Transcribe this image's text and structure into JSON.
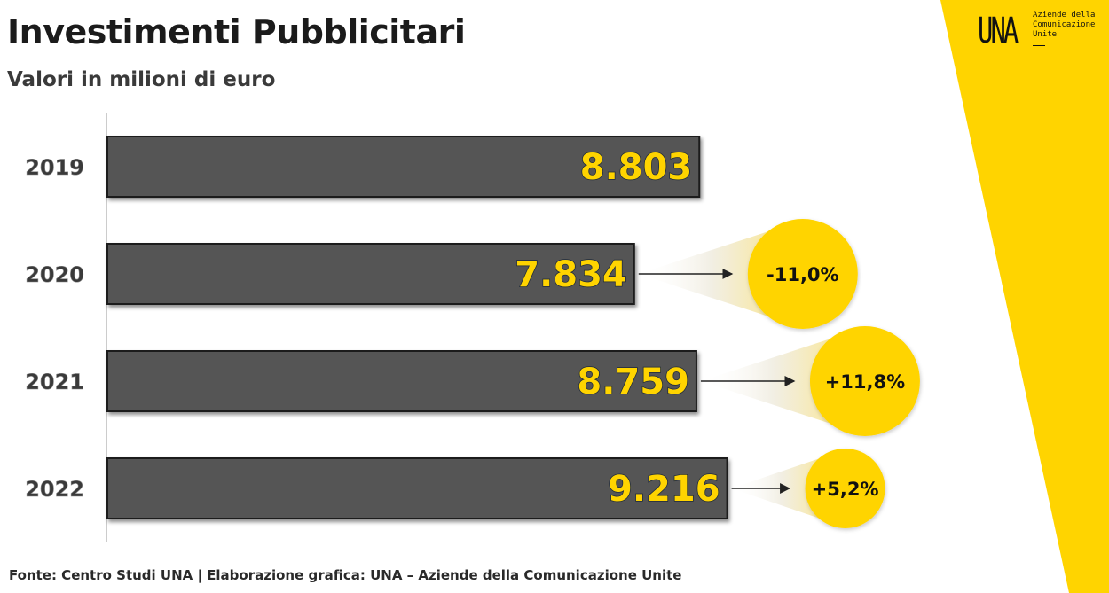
{
  "header": {
    "title": "Investimenti Pubblicitari",
    "subtitle": "Valori in milioni di euro"
  },
  "logo": {
    "mark": "UNA",
    "text": "Aziende della\nComunicazione\nUnite"
  },
  "colors": {
    "brand_yellow": "#ffd400",
    "bar_fill": "#545454",
    "bar_border": "#1a1a1a"
  },
  "chart_data": {
    "type": "bar",
    "orientation": "horizontal",
    "title": "Investimenti Pubblicitari",
    "subtitle": "Valori in milioni di euro",
    "categories": [
      "2019",
      "2020",
      "2021",
      "2022"
    ],
    "values": [
      8803,
      7834,
      8759,
      9216
    ],
    "value_labels": [
      "8.803",
      "7.834",
      "8.759",
      "9.216"
    ],
    "changes": [
      null,
      "-11,0%",
      "+11,8%",
      "+5,2%"
    ],
    "xlim": [
      0,
      10000
    ],
    "grid": false,
    "legend": "none"
  },
  "footer": {
    "source": "Fonte: Centro Studi UNA | Elaborazione grafica: UNA – Aziende della Comunicazione Unite"
  }
}
